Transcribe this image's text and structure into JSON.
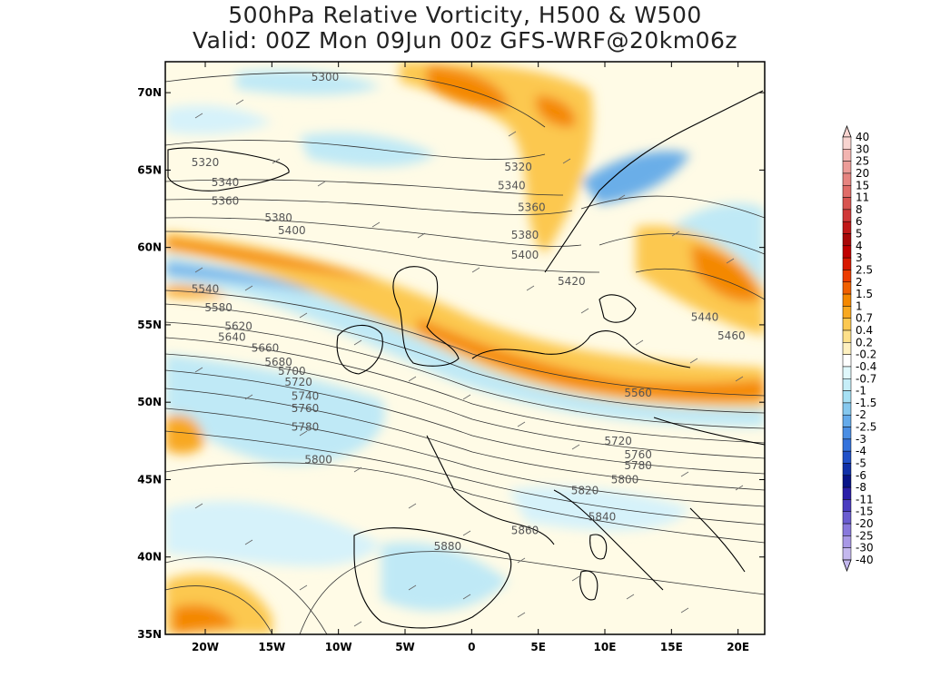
{
  "title": {
    "line1": "500hPa Relative Vorticity, H500 & W500",
    "line2": "Valid: 00Z Mon 09Jun 00z GFS-WRF@20km06z"
  },
  "map": {
    "lon_range": [
      -23,
      22
    ],
    "lat_range": [
      35,
      72
    ],
    "lat_ticks": [
      {
        "value": 70,
        "label": "70N"
      },
      {
        "value": 65,
        "label": "65N"
      },
      {
        "value": 60,
        "label": "60N"
      },
      {
        "value": 55,
        "label": "55N"
      },
      {
        "value": 50,
        "label": "50N"
      },
      {
        "value": 45,
        "label": "45N"
      },
      {
        "value": 40,
        "label": "40N"
      },
      {
        "value": 35,
        "label": "35N"
      }
    ],
    "lon_ticks": [
      {
        "value": -20,
        "label": "20W"
      },
      {
        "value": -15,
        "label": "15W"
      },
      {
        "value": -10,
        "label": "10W"
      },
      {
        "value": -5,
        "label": "5W"
      },
      {
        "value": 0,
        "label": "0"
      },
      {
        "value": 5,
        "label": "5E"
      },
      {
        "value": 10,
        "label": "10E"
      },
      {
        "value": 15,
        "label": "15E"
      },
      {
        "value": 20,
        "label": "20E"
      }
    ],
    "contour_labels": [
      {
        "text": "5300",
        "lon": -11.0,
        "lat": 71.0
      },
      {
        "text": "5320",
        "lon": -20.0,
        "lat": 65.5
      },
      {
        "text": "5340",
        "lon": -18.5,
        "lat": 64.2
      },
      {
        "text": "5360",
        "lon": -18.5,
        "lat": 63.0
      },
      {
        "text": "5380",
        "lon": -14.5,
        "lat": 61.9
      },
      {
        "text": "5400",
        "lon": -13.5,
        "lat": 61.1
      },
      {
        "text": "5320",
        "lon": 3.5,
        "lat": 65.2
      },
      {
        "text": "5340",
        "lon": 3.0,
        "lat": 64.0
      },
      {
        "text": "5360",
        "lon": 4.5,
        "lat": 62.6
      },
      {
        "text": "5380",
        "lon": 4.0,
        "lat": 60.8
      },
      {
        "text": "5400",
        "lon": 4.0,
        "lat": 59.5
      },
      {
        "text": "5420",
        "lon": 7.5,
        "lat": 57.8
      },
      {
        "text": "5440",
        "lon": 17.5,
        "lat": 55.5
      },
      {
        "text": "5460",
        "lon": 19.5,
        "lat": 54.3
      },
      {
        "text": "5540",
        "lon": -20.0,
        "lat": 57.3
      },
      {
        "text": "5580",
        "lon": -19.0,
        "lat": 56.1
      },
      {
        "text": "5620",
        "lon": -17.5,
        "lat": 54.9
      },
      {
        "text": "5640",
        "lon": -18.0,
        "lat": 54.2
      },
      {
        "text": "5660",
        "lon": -15.5,
        "lat": 53.5
      },
      {
        "text": "5680",
        "lon": -14.5,
        "lat": 52.6
      },
      {
        "text": "5700",
        "lon": -13.5,
        "lat": 52.0
      },
      {
        "text": "5720",
        "lon": -13.0,
        "lat": 51.3
      },
      {
        "text": "5740",
        "lon": -12.5,
        "lat": 50.4
      },
      {
        "text": "5760",
        "lon": -12.5,
        "lat": 49.6
      },
      {
        "text": "5780",
        "lon": -12.5,
        "lat": 48.4
      },
      {
        "text": "5800",
        "lon": -11.5,
        "lat": 46.3
      },
      {
        "text": "5560",
        "lon": 12.5,
        "lat": 50.6
      },
      {
        "text": "5720",
        "lon": 11.0,
        "lat": 47.5
      },
      {
        "text": "5760",
        "lon": 12.5,
        "lat": 46.6
      },
      {
        "text": "5780",
        "lon": 12.5,
        "lat": 45.9
      },
      {
        "text": "5800",
        "lon": 11.5,
        "lat": 45.0
      },
      {
        "text": "5820",
        "lon": 8.5,
        "lat": 44.3
      },
      {
        "text": "5840",
        "lon": 9.8,
        "lat": 42.6
      },
      {
        "text": "5860",
        "lon": 4.0,
        "lat": 41.7
      },
      {
        "text": "5880",
        "lon": -1.8,
        "lat": 40.7
      }
    ]
  },
  "colorbar": {
    "levels": [
      "40",
      "30",
      "25",
      "20",
      "15",
      "11",
      "8",
      "6",
      "5",
      "4",
      "3",
      "2.5",
      "2",
      "1.5",
      "1",
      "0.7",
      "0.4",
      "0.2",
      "-0.2",
      "-0.4",
      "-0.7",
      "-1",
      "-1.5",
      "-2",
      "-2.5",
      "-3",
      "-4",
      "-5",
      "-6",
      "-8",
      "-11",
      "-15",
      "-20",
      "-25",
      "-30",
      "-40"
    ],
    "colors": [
      "#f8d4d0",
      "#f2b4b0",
      "#ec9c98",
      "#e68480",
      "#e06c68",
      "#d85450",
      "#d03838",
      "#c01818",
      "#a80808",
      "#c00000",
      "#d81800",
      "#ec3c00",
      "#f06000",
      "#f48800",
      "#f8a820",
      "#fcc850",
      "#fde08a",
      "#fef0c0",
      "#ffffff",
      "#e0f8fc",
      "#c6eef8",
      "#a6e0f4",
      "#86c8ee",
      "#64aaea",
      "#4a8ee4",
      "#3472dc",
      "#2050c8",
      "#1030a8",
      "#081488",
      "#2a1ea8",
      "#4a3cc0",
      "#6a5cd0",
      "#8878dc",
      "#a898e6",
      "#c4b8ee"
    ]
  }
}
